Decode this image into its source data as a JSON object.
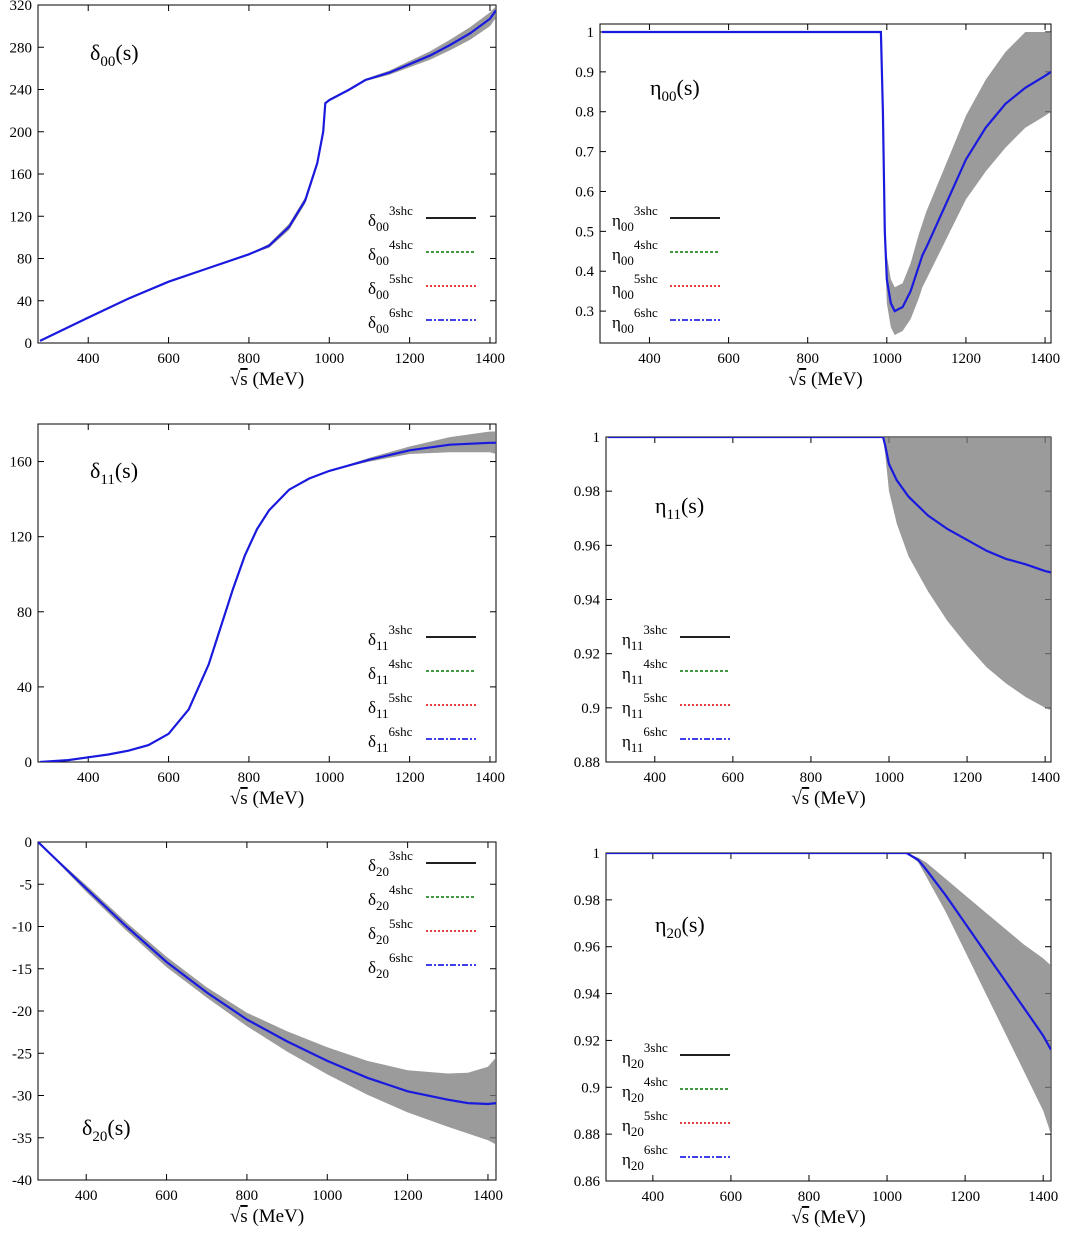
{
  "colors": {
    "band": "#7a7a7a",
    "line": "#1a1adf",
    "black": "#000000",
    "green": "#007a00",
    "red": "#e00000",
    "blue": "#0000dd"
  },
  "legend_suffixes": [
    "3shc",
    "4shc",
    "5shc",
    "6shc"
  ],
  "chart_data": [
    {
      "id": "d00",
      "type": "line",
      "title": {
        "main": "δ",
        "sub": "00",
        "tail": "(s)"
      },
      "legend_base": "δ",
      "legend_sub": "00",
      "xlabel": {
        "pre": "√",
        "mid": "s",
        "post": " (MeV)"
      },
      "xlim": [
        275,
        1415
      ],
      "ylim": [
        0,
        320
      ],
      "xticks": [
        400,
        600,
        800,
        1000,
        1200,
        1400
      ],
      "yticks": [
        0,
        40,
        80,
        120,
        160,
        200,
        240,
        280,
        320
      ],
      "series": [
        {
          "x": [
            280,
            400,
            500,
            600,
            700,
            800,
            850,
            900,
            940,
            970,
            985,
            990,
            1000,
            1050,
            1090,
            1150,
            1200,
            1250,
            1300,
            1350,
            1400,
            1415
          ],
          "y": [
            2,
            24,
            42,
            58,
            71,
            84,
            92,
            110,
            135,
            170,
            200,
            227,
            230,
            240,
            249,
            256,
            264,
            272,
            282,
            293,
            307,
            315
          ],
          "lo": [
            2,
            24,
            42,
            58,
            71,
            84,
            90,
            107,
            132,
            167,
            198,
            226,
            229,
            239,
            248,
            254,
            261,
            268,
            277,
            287,
            300,
            308
          ],
          "hi": [
            2,
            24,
            42,
            58,
            71,
            84,
            94,
            113,
            138,
            173,
            202,
            228,
            231,
            241,
            250,
            258,
            267,
            276,
            287,
            299,
            313,
            319
          ]
        }
      ]
    },
    {
      "id": "e00",
      "type": "line",
      "title": {
        "main": "η",
        "sub": "00",
        "tail": "(s)"
      },
      "legend_base": "η",
      "legend_sub": "00",
      "xlabel": {
        "pre": "√",
        "mid": "s",
        "post": " (MeV)"
      },
      "xlim": [
        275,
        1415
      ],
      "ylim": [
        0.22,
        1.02
      ],
      "xticks": [
        400,
        600,
        800,
        1000,
        1200,
        1400
      ],
      "yticks": [
        0.3,
        0.4,
        0.5,
        0.6,
        0.7,
        0.8,
        0.9,
        1
      ],
      "series": [
        {
          "x": [
            280,
            985,
            990,
            995,
            1000,
            1010,
            1020,
            1040,
            1060,
            1080,
            1090,
            1100,
            1150,
            1200,
            1250,
            1300,
            1350,
            1400,
            1415
          ],
          "y": [
            1,
            1,
            0.8,
            0.5,
            0.38,
            0.32,
            0.3,
            0.31,
            0.35,
            0.41,
            0.44,
            0.46,
            0.57,
            0.68,
            0.76,
            0.82,
            0.86,
            0.89,
            0.9
          ],
          "lo": [
            1,
            1,
            0.78,
            0.46,
            0.32,
            0.26,
            0.24,
            0.25,
            0.28,
            0.33,
            0.36,
            0.38,
            0.48,
            0.58,
            0.65,
            0.71,
            0.76,
            0.79,
            0.8
          ],
          "hi": [
            1,
            1,
            0.82,
            0.54,
            0.44,
            0.38,
            0.36,
            0.37,
            0.42,
            0.49,
            0.52,
            0.55,
            0.67,
            0.79,
            0.88,
            0.95,
            1.0,
            1.0,
            1.0
          ]
        }
      ]
    },
    {
      "id": "d11",
      "type": "line",
      "title": {
        "main": "δ",
        "sub": "11",
        "tail": "(s)"
      },
      "legend_base": "δ",
      "legend_sub": "11",
      "xlabel": {
        "pre": "√",
        "mid": "s",
        "post": " (MeV)"
      },
      "xlim": [
        275,
        1415
      ],
      "ylim": [
        0,
        180
      ],
      "xticks": [
        400,
        600,
        800,
        1000,
        1200,
        1400
      ],
      "yticks": [
        0,
        40,
        80,
        120,
        160
      ],
      "series": [
        {
          "x": [
            280,
            350,
            400,
            450,
            500,
            550,
            600,
            650,
            700,
            730,
            760,
            790,
            820,
            850,
            900,
            950,
            1000,
            1100,
            1200,
            1300,
            1400,
            1415
          ],
          "y": [
            0,
            1,
            2.5,
            4,
            6,
            9,
            15,
            28,
            52,
            72,
            92,
            110,
            124,
            134,
            145,
            151,
            155,
            161,
            166,
            169,
            170,
            170
          ],
          "lo": [
            0,
            1,
            2.5,
            4,
            6,
            9,
            15,
            28,
            52,
            72,
            92,
            110,
            124,
            134,
            145,
            151,
            155,
            160,
            164,
            165,
            165,
            164
          ],
          "hi": [
            0,
            1,
            2.5,
            4,
            6,
            9,
            15,
            28,
            52,
            72,
            92,
            110,
            124,
            134,
            145,
            151,
            155,
            162,
            168,
            173,
            176,
            176
          ]
        }
      ]
    },
    {
      "id": "e11",
      "type": "line",
      "title": {
        "main": "η",
        "sub": "11",
        "tail": "(s)"
      },
      "legend_base": "η",
      "legend_sub": "11",
      "xlabel": {
        "pre": "√",
        "mid": "s",
        "post": " (MeV)"
      },
      "xlim": [
        275,
        1415
      ],
      "ylim": [
        0.88,
        1.0
      ],
      "xticks": [
        400,
        600,
        800,
        1000,
        1200,
        1400
      ],
      "yticks": [
        0.88,
        0.9,
        0.92,
        0.94,
        0.96,
        0.98,
        1
      ],
      "series": [
        {
          "x": [
            280,
            985,
            990,
            1000,
            1020,
            1050,
            1100,
            1150,
            1200,
            1250,
            1300,
            1350,
            1400,
            1415
          ],
          "y": [
            1,
            1,
            0.997,
            0.99,
            0.984,
            0.978,
            0.971,
            0.966,
            0.962,
            0.958,
            0.955,
            0.953,
            0.9505,
            0.95
          ],
          "lo": [
            1,
            1,
            0.994,
            0.98,
            0.968,
            0.956,
            0.943,
            0.932,
            0.923,
            0.915,
            0.909,
            0.904,
            0.9,
            0.899
          ],
          "hi": [
            1,
            1,
            1,
            1,
            1,
            1,
            1,
            1,
            1,
            1,
            1,
            1,
            1,
            1
          ]
        }
      ]
    },
    {
      "id": "d20",
      "type": "line",
      "title": {
        "main": "δ",
        "sub": "20",
        "tail": "(s)"
      },
      "legend_base": "δ",
      "legend_sub": "20",
      "xlabel": {
        "pre": "√",
        "mid": "s",
        "post": " (MeV)"
      },
      "xlim": [
        280,
        1420
      ],
      "ylim": [
        -40,
        0
      ],
      "xticks": [
        400,
        600,
        800,
        1000,
        1200,
        1400
      ],
      "yticks": [
        -40,
        -35,
        -30,
        -25,
        -20,
        -15,
        -10,
        -5,
        0
      ],
      "series": [
        {
          "x": [
            280,
            400,
            500,
            600,
            700,
            800,
            900,
            1000,
            1100,
            1200,
            1300,
            1350,
            1400,
            1420
          ],
          "y": [
            0,
            -5.5,
            -10,
            -14.2,
            -17.8,
            -21,
            -23.6,
            -25.9,
            -27.9,
            -29.5,
            -30.5,
            -30.9,
            -31,
            -30.9
          ],
          "lo": [
            0,
            -5.9,
            -10.5,
            -14.8,
            -18.4,
            -21.8,
            -24.8,
            -27.5,
            -29.9,
            -32,
            -33.7,
            -34.5,
            -35.3,
            -35.8
          ],
          "hi": [
            0,
            -5.1,
            -9.5,
            -13.6,
            -17.2,
            -20.2,
            -22.4,
            -24.3,
            -25.9,
            -27,
            -27.4,
            -27.3,
            -26.6,
            -25.5
          ]
        }
      ]
    },
    {
      "id": "e20",
      "type": "line",
      "title": {
        "main": "η",
        "sub": "20",
        "tail": "(s)"
      },
      "legend_base": "η",
      "legend_sub": "20",
      "xlabel": {
        "pre": "√",
        "mid": "s",
        "post": " (MeV)"
      },
      "xlim": [
        280,
        1420
      ],
      "ylim": [
        0.86,
        1.0
      ],
      "xticks": [
        400,
        600,
        800,
        1000,
        1200,
        1400
      ],
      "yticks": [
        0.86,
        0.88,
        0.9,
        0.92,
        0.94,
        0.96,
        0.98,
        1
      ],
      "series": [
        {
          "x": [
            280,
            1050,
            1080,
            1100,
            1150,
            1200,
            1250,
            1300,
            1350,
            1400,
            1420
          ],
          "y": [
            1,
            1,
            0.997,
            0.993,
            0.982,
            0.97,
            0.958,
            0.946,
            0.934,
            0.922,
            0.916
          ],
          "lo": [
            1,
            1,
            0.996,
            0.99,
            0.975,
            0.958,
            0.941,
            0.924,
            0.907,
            0.89,
            0.88
          ],
          "hi": [
            1,
            1,
            0.998,
            0.996,
            0.989,
            0.982,
            0.975,
            0.968,
            0.961,
            0.955,
            0.952
          ]
        }
      ]
    }
  ]
}
